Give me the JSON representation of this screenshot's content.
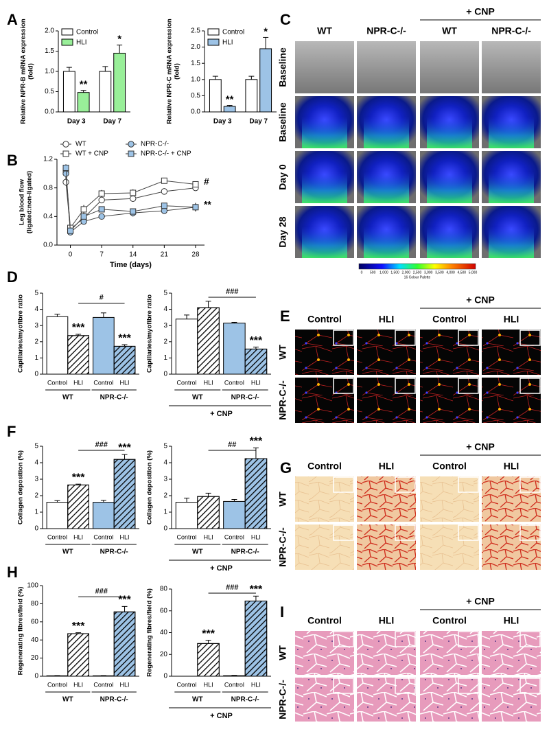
{
  "panel_letters": [
    "A",
    "B",
    "C",
    "D",
    "E",
    "F",
    "G",
    "H",
    "I"
  ],
  "chart_data": [
    {
      "type": "bar",
      "ylabel": [
        "Relative NPR-B mRNA expression",
        "(fold)"
      ],
      "categories": [
        "Day 3",
        "Day 7"
      ],
      "series": [
        {
          "name": "Control",
          "color": "#ffffff",
          "values": [
            1.0,
            1.0
          ],
          "errors": [
            0.1,
            0.12
          ]
        },
        {
          "name": "HLI",
          "color": "#99ef99",
          "values": [
            0.48,
            1.45
          ],
          "errors": [
            0.05,
            0.2
          ],
          "annotations": [
            "**",
            "*"
          ]
        }
      ],
      "ylim": [
        0,
        2
      ],
      "yticks": [
        {
          "value": 0,
          "label": "0.0"
        },
        0.5,
        {
          "value": 1,
          "label": "1.0"
        },
        1.5,
        {
          "value": 2,
          "label": "2.0"
        }
      ]
    },
    {
      "type": "bar",
      "ylabel": [
        "Relative NPR-C mRNA expression",
        "(fold)"
      ],
      "categories": [
        "Day 3",
        "Day 7"
      ],
      "series": [
        {
          "name": "Control",
          "color": "#ffffff",
          "values": [
            1.0,
            1.0
          ],
          "errors": [
            0.1,
            0.1
          ]
        },
        {
          "name": "HLI",
          "color": "#9dc3e6",
          "values": [
            0.17,
            1.95
          ],
          "errors": [
            0.03,
            0.35
          ],
          "annotations": [
            "**",
            "*"
          ]
        }
      ],
      "ylim": [
        0,
        2.5
      ],
      "yticks": [
        {
          "value": 0,
          "label": "0.0"
        },
        0.5,
        {
          "value": 1,
          "label": "1.0"
        },
        1.5,
        {
          "value": 2,
          "label": "2.0"
        },
        2.5
      ]
    },
    {
      "type": "line",
      "xlabel": "Time (days)",
      "ylabel": [
        "Leg blood flow",
        "(ligated:non-ligated)"
      ],
      "x": [
        -1,
        0,
        3,
        7,
        14,
        21,
        28
      ],
      "xlim": [
        -3,
        30
      ],
      "xticks": [
        0,
        7,
        14,
        21,
        28
      ],
      "ylim": [
        0,
        1.2
      ],
      "yticks": [
        {
          "value": 0,
          "label": "0.0"
        },
        0.4,
        0.8,
        1.2
      ],
      "series": [
        {
          "name": "WT",
          "color": "#ffffff",
          "marker": "circle",
          "values": [
            0.88,
            0.22,
            0.38,
            0.63,
            0.65,
            0.75,
            0.8
          ],
          "errors": [
            0.05,
            0.02,
            0.04,
            0.04,
            0.04,
            0.03,
            0.03
          ]
        },
        {
          "name": "WT + CNP",
          "color": "#ffffff",
          "marker": "square",
          "values": [
            1.03,
            0.24,
            0.5,
            0.72,
            0.73,
            0.9,
            0.85
          ],
          "errors": [
            0.06,
            0.03,
            0.06,
            0.05,
            0.05,
            0.03,
            0.04
          ],
          "end_label": "#"
        },
        {
          "name": "NPR-C-/-",
          "color": "#9dc3e6",
          "marker": "circle",
          "values": [
            1.0,
            0.18,
            0.33,
            0.4,
            0.45,
            0.48,
            0.53
          ],
          "errors": [
            0.07,
            0.02,
            0.03,
            0.03,
            0.05,
            0.03,
            0.05
          ]
        },
        {
          "name": "NPR-C-/- + CNP",
          "color": "#9dc3e6",
          "marker": "square",
          "values": [
            1.08,
            0.2,
            0.4,
            0.5,
            0.47,
            0.55,
            0.53
          ],
          "errors": [
            0.05,
            0.03,
            0.04,
            0.03,
            0.04,
            0.04,
            0.06
          ],
          "end_label": "**"
        }
      ]
    },
    {
      "type": "bar",
      "ylabel": [
        "Capillaries/myofibre ratio"
      ],
      "categories": [
        "Control",
        "HLI",
        "Control",
        "HLI"
      ],
      "groups": [
        "WT",
        "NPR-C-/-"
      ],
      "colors": [
        "#ffffff",
        "#ffffff",
        "#9dc3e6",
        "#9dc3e6"
      ],
      "hatch": [
        false,
        true,
        false,
        true
      ],
      "values": [
        3.55,
        2.38,
        3.5,
        1.72
      ],
      "errors": [
        0.15,
        0.08,
        0.28,
        0.1
      ],
      "bar_labels": [
        null,
        "***",
        null,
        "***"
      ],
      "bracket": {
        "from": 1,
        "to": 3,
        "label": "#"
      },
      "ylim": [
        0,
        5
      ],
      "yticks": [
        0,
        1,
        2,
        3,
        4,
        5
      ]
    },
    {
      "type": "bar",
      "ylabel": [
        "Capillaries/myofibre ratio"
      ],
      "categories": [
        "Control",
        "HLI",
        "Control",
        "HLI"
      ],
      "groups": [
        "WT",
        "NPR-C-/-"
      ],
      "footer": "+ CNP",
      "colors": [
        "#ffffff",
        "#ffffff",
        "#9dc3e6",
        "#9dc3e6"
      ],
      "hatch": [
        false,
        true,
        false,
        true
      ],
      "values": [
        3.4,
        4.1,
        3.15,
        1.55
      ],
      "errors": [
        0.25,
        0.4,
        0.05,
        0.12
      ],
      "bar_labels": [
        null,
        null,
        null,
        "***"
      ],
      "bracket": {
        "from": 1,
        "to": 3,
        "label": "###"
      },
      "ylim": [
        0,
        5
      ],
      "yticks": [
        0,
        1,
        2,
        3,
        4,
        5
      ]
    },
    {
      "type": "bar",
      "ylabel": [
        "Collagen deposition (%)"
      ],
      "categories": [
        "Control",
        "HLI",
        "Control",
        "HLI"
      ],
      "groups": [
        "WT",
        "NPR-C-/-"
      ],
      "colors": [
        "#ffffff",
        "#ffffff",
        "#9dc3e6",
        "#9dc3e6"
      ],
      "hatch": [
        false,
        true,
        false,
        true
      ],
      "values": [
        1.6,
        2.65,
        1.6,
        4.2
      ],
      "errors": [
        0.1,
        0.05,
        0.12,
        0.3
      ],
      "bar_labels": [
        null,
        "***",
        null,
        "***"
      ],
      "bracket": {
        "from": 1,
        "to": 3,
        "label": "###"
      },
      "ylim": [
        0,
        5
      ],
      "yticks": [
        0,
        1,
        2,
        3,
        4,
        5
      ]
    },
    {
      "type": "bar",
      "ylabel": [
        "Collagen deposition (%)"
      ],
      "categories": [
        "Control",
        "HLI",
        "Control",
        "HLI"
      ],
      "groups": [
        "WT",
        "NPR-C-/-"
      ],
      "footer": "+ CNP",
      "colors": [
        "#ffffff",
        "#ffffff",
        "#9dc3e6",
        "#9dc3e6"
      ],
      "hatch": [
        false,
        true,
        false,
        true
      ],
      "values": [
        1.6,
        1.95,
        1.65,
        4.25
      ],
      "errors": [
        0.25,
        0.2,
        0.12,
        0.65
      ],
      "bar_labels": [
        null,
        null,
        null,
        "***"
      ],
      "bracket": {
        "from": 1,
        "to": 3,
        "label": "##"
      },
      "ylim": [
        0,
        5
      ],
      "yticks": [
        0,
        1,
        2,
        3,
        4,
        5
      ]
    },
    {
      "type": "bar",
      "ylabel": [
        "Regenerating fibres/field (%)"
      ],
      "categories": [
        "Control",
        "HLI",
        "Control",
        "HLI"
      ],
      "groups": [
        "WT",
        "NPR-C-/-"
      ],
      "colors": [
        "#ffffff",
        "#ffffff",
        "#9dc3e6",
        "#9dc3e6"
      ],
      "hatch": [
        false,
        true,
        false,
        true
      ],
      "values": [
        0.5,
        47,
        0.5,
        71
      ],
      "errors": [
        0.2,
        1,
        0.2,
        6
      ],
      "bar_labels": [
        null,
        "***",
        null,
        "***"
      ],
      "bracket": {
        "from": 1,
        "to": 3,
        "label": "###"
      },
      "ylim": [
        0,
        100
      ],
      "yticks": [
        0,
        20,
        40,
        60,
        80,
        100
      ]
    },
    {
      "type": "bar",
      "ylabel": [
        "Regenerating fibres/field (%)"
      ],
      "categories": [
        "Control",
        "HLI",
        "Control",
        "HLI"
      ],
      "groups": [
        "WT",
        "NPR-C-/-"
      ],
      "footer": "+ CNP",
      "colors": [
        "#ffffff",
        "#ffffff",
        "#9dc3e6",
        "#9dc3e6"
      ],
      "hatch": [
        false,
        true,
        false,
        true
      ],
      "values": [
        0,
        30,
        0.5,
        69
      ],
      "errors": [
        0,
        3,
        0.3,
        4.5
      ],
      "bar_labels": [
        null,
        "***",
        null,
        "***"
      ],
      "bracket": {
        "from": 1,
        "to": 3,
        "label": "###"
      },
      "ylim": [
        0,
        80
      ],
      "yticks": [
        0,
        20,
        40,
        60,
        80
      ]
    }
  ],
  "images": {
    "C": {
      "header": "+ CNP",
      "columns": [
        "WT",
        "NPR-C-/-",
        "WT",
        "NPR-C-/-"
      ],
      "rows": [
        "Baseline",
        "Baseline",
        "Day 0",
        "Day 28"
      ],
      "scale_labels": [
        "0",
        "500",
        "1,000",
        "1,500",
        "2,000",
        "2,500",
        "3,000",
        "3,500",
        "4,000",
        "4,500",
        "5,000"
      ],
      "scale_caption": "16 Colour Palette"
    },
    "E": {
      "header": "+ CNP",
      "columns": [
        "Control",
        "HLI",
        "Control",
        "HLI"
      ],
      "rows": [
        "WT",
        "NPR-C-/-"
      ]
    },
    "G": {
      "header": "+ CNP",
      "columns": [
        "Control",
        "HLI",
        "Control",
        "HLI"
      ],
      "rows": [
        "WT",
        "NPR-C-/-"
      ]
    },
    "I": {
      "header": "+ CNP",
      "columns": [
        "Control",
        "HLI",
        "Control",
        "HLI"
      ],
      "rows": [
        "WT",
        "NPR-C-/-"
      ]
    }
  }
}
